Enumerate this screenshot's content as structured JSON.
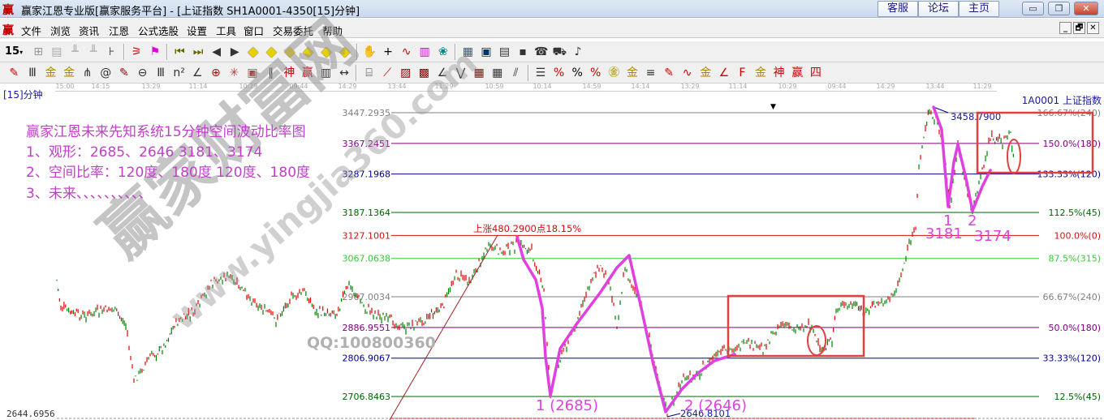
{
  "window": {
    "app_logo": "赢",
    "title": "赢家江恩专业版[赢家服务平台] - [上证指数  SH1A0001-4350[15]分钟]",
    "links": [
      "客服",
      "论坛",
      "主页"
    ],
    "controls": [
      "minimize",
      "restore",
      "close"
    ]
  },
  "menu": {
    "logo": "赢",
    "items": [
      "文件",
      "浏览",
      "资讯",
      "江恩",
      "公式选股",
      "设置",
      "工具",
      "窗口",
      "交易委托",
      "帮助"
    ],
    "mdi_controls": [
      "_",
      "🗗",
      "✕"
    ]
  },
  "toolbar1": {
    "period": "15",
    "icons": [
      "grid",
      "doc",
      "chart-a",
      "chart-b",
      "tick",
      "sep",
      "level",
      "flag",
      "sep",
      "first",
      "last",
      "prev",
      "next",
      "dia-left",
      "dia-right",
      "dia-h",
      "dia-v",
      "dia-x",
      "dia-all",
      "sep",
      "hand",
      "cross",
      "wave",
      "bars",
      "brain",
      "sep",
      "calendar",
      "calc",
      "notes",
      "save",
      "phone",
      "truck",
      "music"
    ]
  },
  "toolbar2": {
    "icons": [
      "pen",
      "bars3",
      "gold1",
      "gold2",
      "fan",
      "spiral",
      "pen2",
      "circle",
      "bars3",
      "n2",
      "angle",
      "target",
      "star",
      "box",
      "lines",
      "shen",
      "ying",
      "ruler",
      "width",
      "sep",
      "frame",
      "fan2",
      "box2",
      "box3",
      "angle2",
      "wave2",
      "grid2",
      "grid3",
      "hatch",
      "sep",
      "ladder",
      "pct-r",
      "percent",
      "pct-lines",
      "gold-c",
      "gold-l",
      "lines2",
      "pen3",
      "wave3",
      "gold3",
      "ang3",
      "F",
      "gold4",
      "shen2",
      "ying2",
      "si"
    ]
  },
  "time_axis": [
    "15:00",
    "14:15",
    "13:29",
    "11:14",
    "10:29",
    "09:44",
    "14:29",
    "13:44",
    "11:29",
    "10:59",
    "10:14",
    "14:59",
    "14:14",
    "13:29",
    "11:14",
    "10:29",
    "09:44",
    "14:29",
    "13:44",
    "11:29"
  ],
  "period_label": "[15]分钟",
  "code_label": "1A0001  上证指数",
  "notes": [
    "赢家江恩未来先知系统15分钟空间波动比率图",
    "1、观形：2685、2646      3181、3174",
    "2、空间比率：120度、180度    120度、180度",
    "3、未来、、、、、、、、、、"
  ],
  "watermark": {
    "brand": "赢家财富网",
    "url": "www.yingjia360.com",
    "qq": "QQ:100800360"
  },
  "chart_data": {
    "type": "line",
    "series": [
      {
        "values": [
          3011,
          2937,
          2916,
          2937,
          2895,
          2747,
          2810,
          2832,
          2895,
          2927,
          3001,
          3022,
          2980,
          2906,
          2958,
          2980,
          2927,
          2927,
          3001,
          2937,
          2916,
          2885,
          2906,
          2937,
          3022,
          3011,
          3096,
          3085,
          3107,
          3085,
          2980,
          2715,
          2810,
          2895,
          3022,
          3043,
          3011,
          2895,
          3043,
          2937,
          2768,
          2663,
          2747,
          2768,
          2810,
          2832,
          2842,
          2832,
          2895,
          2885,
          2895,
          2821,
          2853,
          2937,
          2948,
          2927,
          2948,
          2969,
          3022,
          3107,
          3138,
          3318,
          3403,
          3456,
          3424,
          3318,
          3202,
          3360,
          3254,
          3191,
          3297,
          3382,
          3371,
          3392,
          3297
        ]
      }
    ],
    "up_color": "#e00000",
    "down_color": "#008000",
    "levels": [
      {
        "price": "3447.2935",
        "ratio": "166.67%(240)",
        "color": "#808080"
      },
      {
        "price": "3367.2451",
        "ratio": "150.0%(180)",
        "color": "#800080"
      },
      {
        "price": "3287.1968",
        "ratio": "133.33%(120)",
        "color": "#00008b"
      },
      {
        "price": "3187.1364",
        "ratio": "112.5%(45)",
        "color": "#006400"
      },
      {
        "price": "3127.1001",
        "ratio": "100.0%(0)",
        "color": "#d01010"
      },
      {
        "price": "3067.0638",
        "ratio": "87.5%(315)",
        "color": "#33cc33"
      },
      {
        "price": "2967.0034",
        "ratio": "66.67%(240)",
        "color": "#808080"
      },
      {
        "price": "2886.9551",
        "ratio": "50.0%(180)",
        "color": "#800080"
      },
      {
        "price": "2806.9067",
        "ratio": "33.33%(120)",
        "color": "#00008b"
      },
      {
        "price": "2706.8463",
        "ratio": "12.5%(45)",
        "color": "#006400"
      }
    ],
    "bottom_price": "2644.6956",
    "high_label": "3458.7900",
    "low_label": "2646.8101",
    "rise_label": "上涨480.2900点18.15%",
    "annotations": [
      "1 (2685)",
      "2 (2646)",
      "1",
      "3181",
      "2",
      "3174"
    ],
    "annotation_color": "#e040e0",
    "box_color": "#e04040"
  }
}
